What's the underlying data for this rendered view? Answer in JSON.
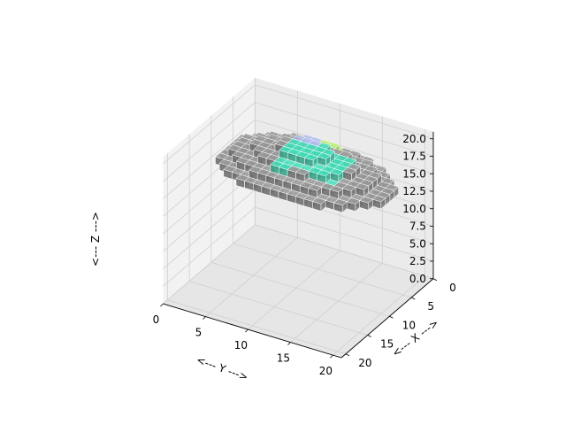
{
  "chart_data": {
    "type": "voxel",
    "xlabel": "<--- X --->",
    "ylabel": "<--- Y --->",
    "zlabel": "<--- Z --->",
    "xlim": [
      0,
      21
    ],
    "ylim": [
      0,
      21
    ],
    "zlim": [
      0,
      21
    ],
    "x_ticks": [
      "0",
      "5",
      "10",
      "15",
      "20"
    ],
    "y_ticks": [
      "0",
      "5",
      "10",
      "15",
      "20"
    ],
    "z_ticks": [
      "0.0",
      "2.5",
      "5.0",
      "7.5",
      "10.0",
      "12.5",
      "15.0",
      "17.5",
      "20.0"
    ],
    "grid": true,
    "colors": {
      "base": "#8a8a8a",
      "teal": "#3ec9a7",
      "lavender": "#9aa7d6",
      "yellow_green": "#a9d36a"
    }
  }
}
